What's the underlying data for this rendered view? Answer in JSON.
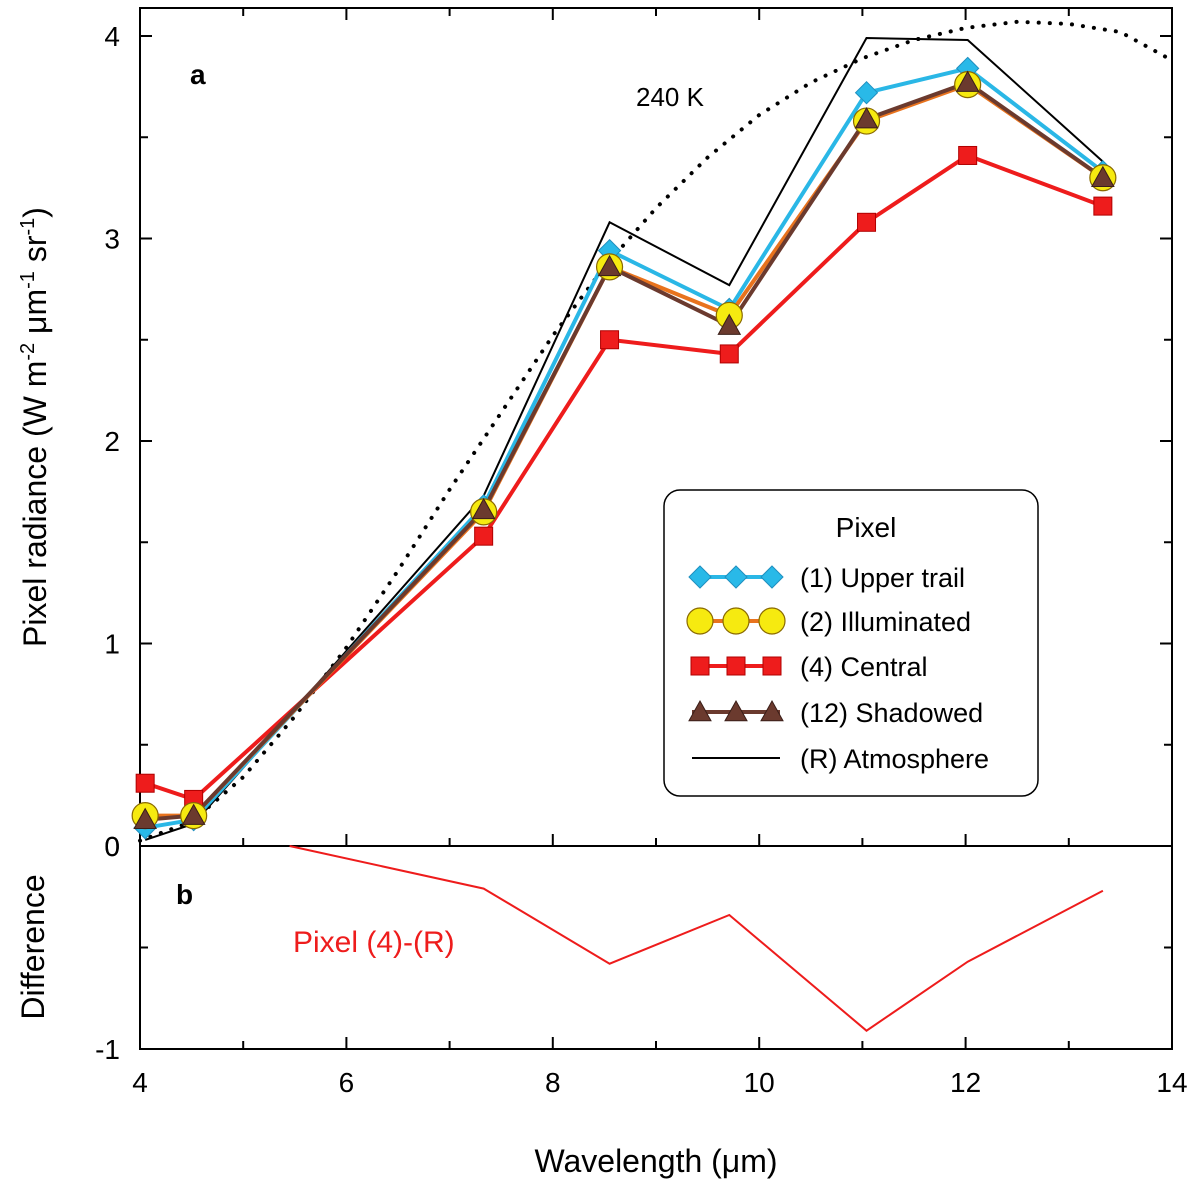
{
  "chart_data": [
    {
      "panel": "a",
      "type": "line",
      "panel_label": "a",
      "ylabel_main": "Pixel radiance  (W m",
      "ylabel_sup1": "-2",
      "ylabel_mid1": " μm",
      "ylabel_sup2": "-1",
      "ylabel_mid2": " sr",
      "ylabel_sup3": "-1",
      "ylabel_end": ")",
      "xlim": [
        4,
        14
      ],
      "ylim": [
        0,
        4
      ],
      "yticks": [
        "0",
        "1",
        "2",
        "3",
        "4"
      ],
      "blackbody": {
        "label": "240 K",
        "temperature_K": 240,
        "x": [
          4.0,
          4.5,
          5.0,
          5.5,
          6.0,
          6.5,
          7.0,
          7.5,
          8.0,
          8.5,
          9.0,
          9.5,
          10.0,
          10.5,
          11.0,
          11.5,
          12.0,
          12.5,
          13.0,
          13.5,
          14.0
        ],
        "y": [
          0.026,
          0.12,
          0.34,
          0.64,
          0.98,
          1.36,
          1.76,
          2.14,
          2.52,
          2.86,
          3.15,
          3.4,
          3.61,
          3.77,
          3.89,
          3.98,
          4.04,
          4.07,
          4.06,
          4.02,
          3.88
        ]
      },
      "legend": {
        "title": "Pixel",
        "entries": [
          "(1) Upper trail",
          "(2) Illuminated",
          "(4) Central",
          "(12) Shadowed",
          "(R) Atmosphere"
        ]
      },
      "series": [
        {
          "name": "(1) Upper trail",
          "color": "#2ab7e6",
          "marker": "diamond",
          "x": [
            4.05,
            4.52,
            7.33,
            8.55,
            9.71,
            11.04,
            12.02,
            13.33
          ],
          "y": [
            0.09,
            0.13,
            1.68,
            2.94,
            2.65,
            3.72,
            3.84,
            3.33
          ]
        },
        {
          "name": "(2) Illuminated",
          "color": "#e8731e",
          "marker": "circle",
          "x": [
            4.05,
            4.52,
            7.33,
            8.55,
            9.71,
            11.04,
            12.02,
            13.33
          ],
          "y": [
            0.15,
            0.15,
            1.65,
            2.86,
            2.62,
            3.58,
            3.76,
            3.3
          ]
        },
        {
          "name": "(4) Central",
          "color": "#ee1c1c",
          "marker": "square",
          "x": [
            4.05,
            4.52,
            7.33,
            8.55,
            9.71,
            11.04,
            12.02,
            13.33
          ],
          "y": [
            0.31,
            0.23,
            1.53,
            2.5,
            2.43,
            3.08,
            3.41,
            3.16
          ]
        },
        {
          "name": "(12) Shadowed",
          "color": "#6b3a2e",
          "marker": "triangle",
          "x": [
            4.05,
            4.52,
            7.33,
            8.55,
            9.71,
            11.04,
            12.02,
            13.33
          ],
          "y": [
            0.13,
            0.15,
            1.66,
            2.86,
            2.57,
            3.59,
            3.77,
            3.3
          ]
        },
        {
          "name": "(R) Atmosphere",
          "color": "#000000",
          "marker": "none",
          "x": [
            4.05,
            4.52,
            7.33,
            8.55,
            9.71,
            11.04,
            12.02,
            13.33
          ],
          "y": [
            0.03,
            0.11,
            1.73,
            3.08,
            2.77,
            3.99,
            3.98,
            3.38
          ]
        }
      ]
    },
    {
      "panel": "b",
      "type": "line",
      "panel_label": "b",
      "ylabel": "Difference",
      "xlabel": "Wavelength (μm)",
      "xlim": [
        4,
        14
      ],
      "ylim": [
        -1,
        0
      ],
      "xticks": [
        "4",
        "6",
        "8",
        "10",
        "12",
        "14"
      ],
      "yticks": [
        "0",
        "-1"
      ],
      "annotation": "Pixel (4)-(R)",
      "series": [
        {
          "name": "Pixel (4)-(R)",
          "color": "#ee1c1c",
          "x": [
            5.45,
            7.33,
            8.55,
            9.71,
            11.04,
            12.02,
            13.33
          ],
          "y": [
            0.0,
            -0.21,
            -0.58,
            -0.34,
            -0.91,
            -0.57,
            -0.22
          ]
        }
      ]
    }
  ]
}
